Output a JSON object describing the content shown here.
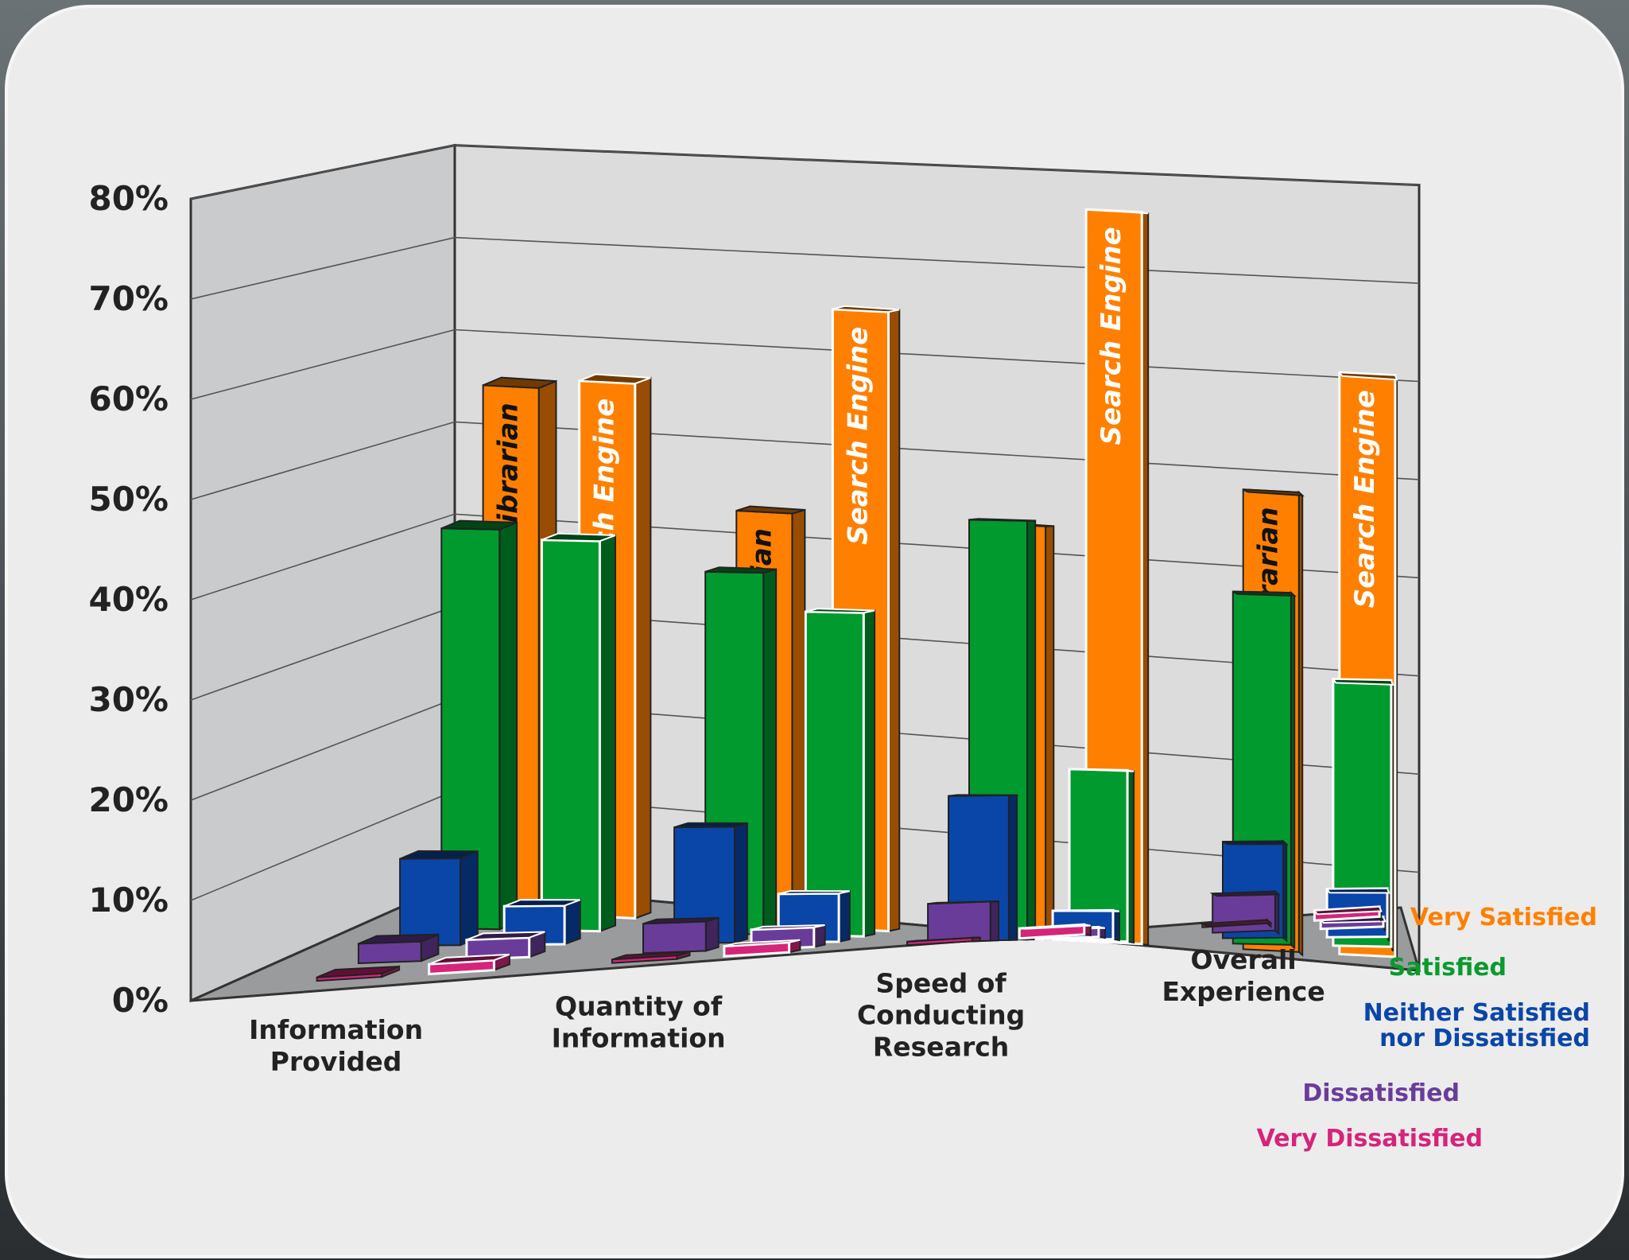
{
  "chart_data": {
    "type": "bar",
    "variant": "3d-grouped",
    "title": "",
    "xlabel": "",
    "ylabel": "",
    "ylim": [
      0,
      80
    ],
    "y_ticks": [
      "0%",
      "10%",
      "20%",
      "30%",
      "40%",
      "50%",
      "60%",
      "70%",
      "80%"
    ],
    "grid": true,
    "legend_position": "right",
    "categories": [
      "Information\nProvided",
      "Quantity of\nInformation",
      "Speed of\nConducting\nResearch",
      "Overall\nExperience"
    ],
    "groups": [
      "Librarian",
      "Search Engine"
    ],
    "bar_labels": {
      "Librarian": "Librarian",
      "Search Engine": "Search Engine"
    },
    "series": [
      {
        "name": "Very Satisfied",
        "color": "#ff8000",
        "values": {
          "Librarian": [
            56,
            44,
            44,
            49
          ],
          "Search Engine": [
            57,
            66,
            78,
            62
          ]
        }
      },
      {
        "name": "Satisfied",
        "color": "#009a2e",
        "values": {
          "Librarian": [
            42,
            38,
            44,
            37
          ],
          "Search Engine": [
            41,
            34,
            18,
            28
          ]
        }
      },
      {
        "name": "Neither Satisfied\nnor Dissatisfied",
        "color": "#0a46a8",
        "values": {
          "Librarian": [
            9,
            12,
            15,
            10
          ],
          "Search Engine": [
            4,
            5,
            3,
            5
          ]
        }
      },
      {
        "name": "Dissatisfied",
        "color": "#6a3c9a",
        "values": {
          "Librarian": [
            2,
            3,
            4,
            4
          ],
          "Search Engine": [
            2,
            2,
            1,
            1
          ]
        }
      },
      {
        "name": "Very Dissatisfied",
        "color": "#d6247a",
        "values": {
          "Librarian": [
            0,
            0,
            0,
            0
          ],
          "Search Engine": [
            1,
            1,
            1,
            1
          ]
        }
      }
    ]
  },
  "legend_colors": [
    "#ff8000",
    "#0a9a2e",
    "#0a46a8",
    "#6a3c9a",
    "#d6247a"
  ]
}
